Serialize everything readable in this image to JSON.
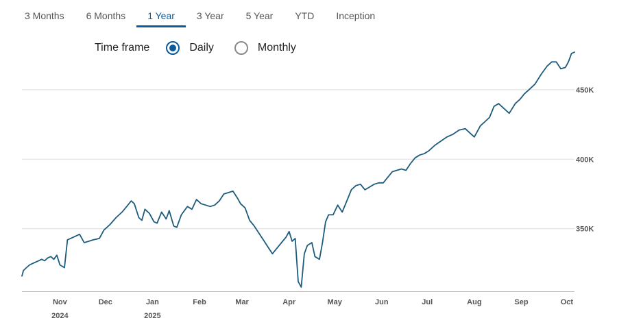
{
  "tabs": [
    {
      "label": "3 Months",
      "active": false
    },
    {
      "label": "6 Months",
      "active": false
    },
    {
      "label": "1 Year",
      "active": true
    },
    {
      "label": "3 Year",
      "active": false
    },
    {
      "label": "5 Year",
      "active": false
    },
    {
      "label": "YTD",
      "active": false
    },
    {
      "label": "Inception",
      "active": false
    }
  ],
  "timeframe": {
    "label": "Time frame",
    "options": [
      {
        "label": "Daily",
        "checked": true
      },
      {
        "label": "Monthly",
        "checked": false
      }
    ]
  },
  "colors": {
    "accent": "#0a5a9c",
    "line": "#1d5b7c",
    "grid": "#dddddd"
  },
  "chart_data": {
    "type": "line",
    "grid": "horizontal",
    "y_axis_side": "right",
    "ylim": [
      305000,
      480000
    ],
    "y_ticks": [
      {
        "value": 350000,
        "label": "350K"
      },
      {
        "value": 400000,
        "label": "400K"
      },
      {
        "value": 450000,
        "label": "450K"
      }
    ],
    "xlim": [
      "2024-10-07",
      "2025-10-06"
    ],
    "x_ticks": [
      {
        "date": "2024-11-01",
        "label": "Nov",
        "sublabel": "2024"
      },
      {
        "date": "2024-12-01",
        "label": "Dec",
        "sublabel": ""
      },
      {
        "date": "2025-01-01",
        "label": "Jan",
        "sublabel": "2025"
      },
      {
        "date": "2025-02-01",
        "label": "Feb",
        "sublabel": ""
      },
      {
        "date": "2025-03-01",
        "label": "Mar",
        "sublabel": ""
      },
      {
        "date": "2025-04-01",
        "label": "Apr",
        "sublabel": ""
      },
      {
        "date": "2025-05-01",
        "label": "May",
        "sublabel": ""
      },
      {
        "date": "2025-06-01",
        "label": "Jun",
        "sublabel": ""
      },
      {
        "date": "2025-07-01",
        "label": "Jul",
        "sublabel": ""
      },
      {
        "date": "2025-08-01",
        "label": "Aug",
        "sublabel": ""
      },
      {
        "date": "2025-09-01",
        "label": "Sep",
        "sublabel": ""
      },
      {
        "date": "2025-10-01",
        "label": "Oct",
        "sublabel": ""
      }
    ],
    "series": [
      {
        "x": [
          "2024-10-07",
          "2024-10-08",
          "2024-10-10",
          "2024-10-12",
          "2024-10-14",
          "2024-10-16",
          "2024-10-18",
          "2024-10-20",
          "2024-10-22",
          "2024-10-24",
          "2024-10-26",
          "2024-10-28",
          "2024-10-30",
          "2024-11-01",
          "2024-11-04",
          "2024-11-06",
          "2024-11-10",
          "2024-11-14",
          "2024-11-17",
          "2024-11-20",
          "2024-11-23",
          "2024-11-27",
          "2024-11-30",
          "2024-12-04",
          "2024-12-08",
          "2024-12-12",
          "2024-12-15",
          "2024-12-18",
          "2024-12-20",
          "2024-12-23",
          "2024-12-25",
          "2024-12-27",
          "2024-12-30",
          "2025-01-02",
          "2025-01-04",
          "2025-01-07",
          "2025-01-10",
          "2025-01-12",
          "2025-01-15",
          "2025-01-17",
          "2025-01-20",
          "2025-01-24",
          "2025-01-27",
          "2025-01-30",
          "2025-02-02",
          "2025-02-05",
          "2025-02-08",
          "2025-02-11",
          "2025-02-14",
          "2025-02-17",
          "2025-02-20",
          "2025-02-23",
          "2025-02-26",
          "2025-02-28",
          "2025-03-03",
          "2025-03-06",
          "2025-03-09",
          "2025-03-12",
          "2025-03-15",
          "2025-03-18",
          "2025-03-21",
          "2025-03-24",
          "2025-03-27",
          "2025-03-30",
          "2025-04-01",
          "2025-04-03",
          "2025-04-05",
          "2025-04-07",
          "2025-04-09",
          "2025-04-11",
          "2025-04-13",
          "2025-04-16",
          "2025-04-18",
          "2025-04-21",
          "2025-04-23",
          "2025-04-25",
          "2025-04-27",
          "2025-04-30",
          "2025-05-03",
          "2025-05-06",
          "2025-05-09",
          "2025-05-12",
          "2025-05-15",
          "2025-05-18",
          "2025-05-21",
          "2025-05-24",
          "2025-05-27",
          "2025-05-30",
          "2025-06-02",
          "2025-06-05",
          "2025-06-08",
          "2025-06-11",
          "2025-06-14",
          "2025-06-17",
          "2025-06-20",
          "2025-06-23",
          "2025-06-26",
          "2025-06-29",
          "2025-07-02",
          "2025-07-06",
          "2025-07-10",
          "2025-07-14",
          "2025-07-18",
          "2025-07-22",
          "2025-07-26",
          "2025-07-30",
          "2025-08-01",
          "2025-08-03",
          "2025-08-05",
          "2025-08-08",
          "2025-08-11",
          "2025-08-14",
          "2025-08-17",
          "2025-08-20",
          "2025-08-24",
          "2025-08-28",
          "2025-08-31",
          "2025-09-03",
          "2025-09-06",
          "2025-09-10",
          "2025-09-14",
          "2025-09-18",
          "2025-09-21",
          "2025-09-24",
          "2025-09-27",
          "2025-09-30",
          "2025-10-02",
          "2025-10-04",
          "2025-10-06"
        ],
        "y": [
          316000,
          320000,
          322000,
          324000,
          325000,
          326000,
          327000,
          328000,
          327000,
          329000,
          330000,
          328000,
          331000,
          324000,
          322000,
          342000,
          344000,
          346000,
          340000,
          341000,
          342000,
          343000,
          349000,
          353000,
          358000,
          362000,
          366000,
          370000,
          368000,
          358000,
          356000,
          364000,
          361000,
          355000,
          354000,
          362000,
          357000,
          363000,
          352000,
          351000,
          360000,
          366000,
          364000,
          371000,
          368000,
          367000,
          366000,
          367000,
          370000,
          375000,
          376000,
          377000,
          372000,
          368000,
          365000,
          356000,
          352000,
          347000,
          342000,
          337000,
          332000,
          336000,
          340000,
          344000,
          348000,
          341000,
          343000,
          312000,
          308000,
          332000,
          338000,
          340000,
          330000,
          328000,
          340000,
          355000,
          360000,
          360000,
          367000,
          362000,
          370000,
          378000,
          381000,
          382000,
          378000,
          380000,
          382000,
          383000,
          383000,
          387000,
          391000,
          392000,
          393000,
          392000,
          397000,
          401000,
          403000,
          404000,
          406000,
          410000,
          413000,
          416000,
          418000,
          421000,
          422000,
          418000,
          416000,
          420000,
          424000,
          427000,
          430000,
          438000,
          440000,
          437000,
          433000,
          440000,
          443000,
          447000,
          450000,
          454000,
          461000,
          467000,
          470000,
          470000,
          465000,
          466000,
          470000,
          476000,
          477000
        ]
      }
    ]
  }
}
